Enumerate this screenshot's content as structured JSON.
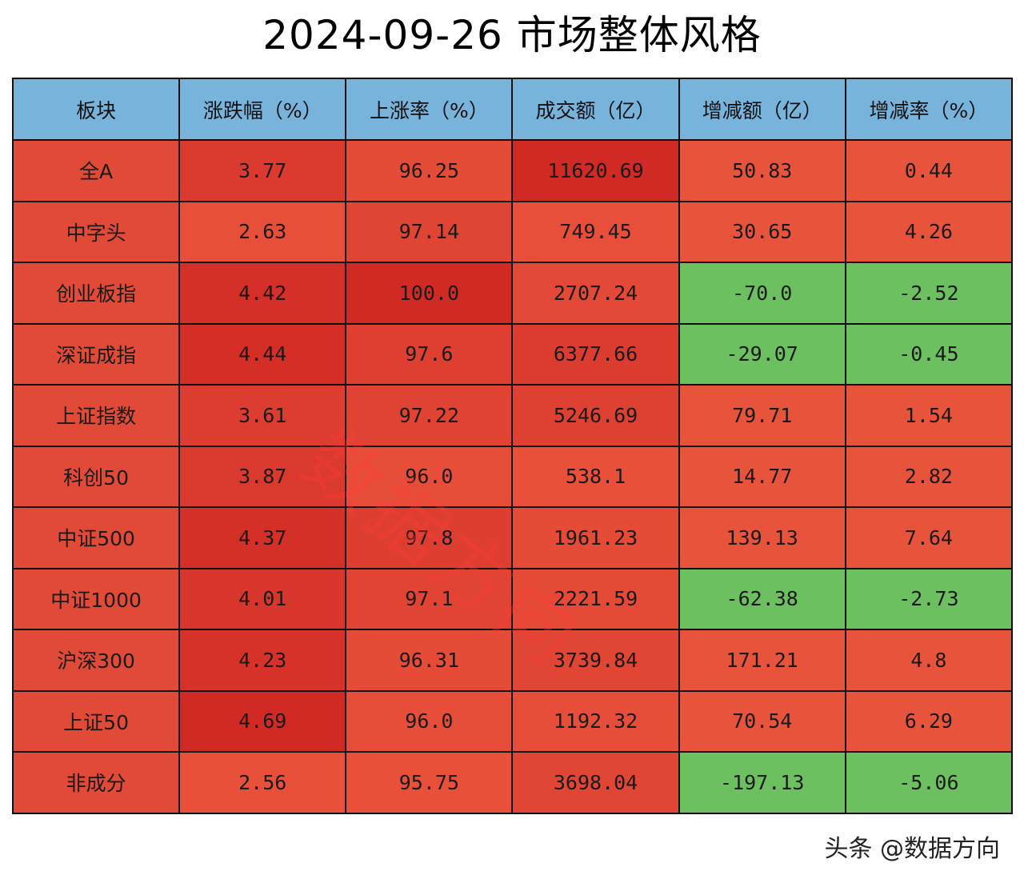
{
  "title": "2024-09-26 市场整体风格",
  "watermark": "数据方向",
  "footer": "头条 @数据方向",
  "colors": {
    "header_bg": "#78b3dc",
    "positive_change_bg": "#e8543b",
    "negative_change_bg": "#6cc060"
  },
  "chart_data": {
    "type": "table",
    "title": "2024-09-26 市场整体风格",
    "columns": [
      "板块",
      "涨跌幅（%）",
      "上涨率（%）",
      "成交额（亿）",
      "增减额（亿）",
      "增减率（%）"
    ],
    "rows": [
      [
        "全A",
        "3.77",
        "96.25",
        "11620.69",
        "50.83",
        "0.44"
      ],
      [
        "中字头",
        "2.63",
        "97.14",
        "749.45",
        "30.65",
        "4.26"
      ],
      [
        "创业板指",
        "4.42",
        "100.0",
        "2707.24",
        "-70.0",
        "-2.52"
      ],
      [
        "深证成指",
        "4.44",
        "97.6",
        "6377.66",
        "-29.07",
        "-0.45"
      ],
      [
        "上证指数",
        "3.61",
        "97.22",
        "5246.69",
        "79.71",
        "1.54"
      ],
      [
        "科创50",
        "3.87",
        "96.0",
        "538.1",
        "14.77",
        "2.82"
      ],
      [
        "中证500",
        "4.37",
        "97.8",
        "1961.23",
        "139.13",
        "7.64"
      ],
      [
        "中证1000",
        "4.01",
        "97.1",
        "2221.59",
        "-62.38",
        "-2.73"
      ],
      [
        "沪深300",
        "4.23",
        "96.31",
        "3739.84",
        "171.21",
        "4.8"
      ],
      [
        "上证50",
        "4.69",
        "96.0",
        "1192.32",
        "70.54",
        "6.29"
      ],
      [
        "非成分",
        "2.56",
        "95.75",
        "3698.04",
        "-197.13",
        "-5.06"
      ]
    ]
  }
}
